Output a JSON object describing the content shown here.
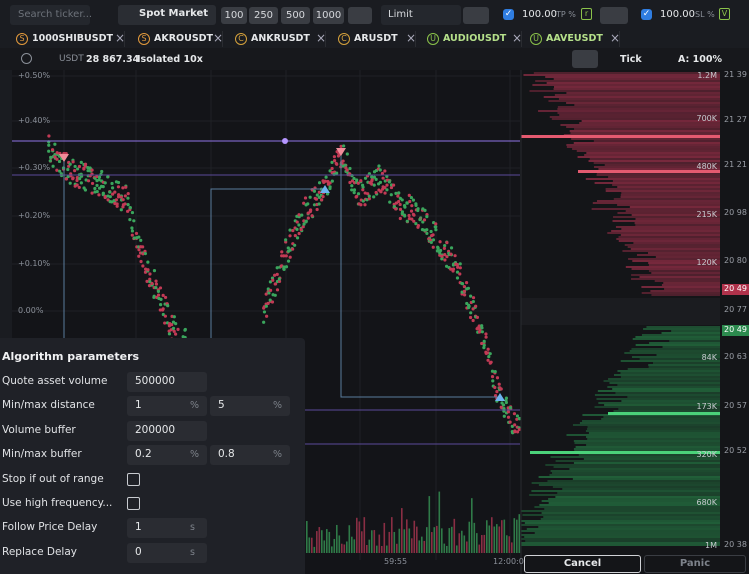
{
  "toolbar": {
    "search_placeholder": "Search ticker...",
    "market": "Spot Market",
    "amounts": [
      "100",
      "250",
      "500",
      "1000"
    ],
    "order_type": "Limit",
    "tp": {
      "value": "100.00",
      "label": "TP %",
      "key": "r"
    },
    "sl": {
      "value": "100.00",
      "label": "SL %",
      "key": "V"
    }
  },
  "tabs": [
    {
      "icon": "S",
      "name": "1000SHIBUSDT"
    },
    {
      "icon": "S",
      "name": "AKROUSDT"
    },
    {
      "icon": "C",
      "name": "ANKRUSDT"
    },
    {
      "icon": "C",
      "name": "ARUSDT"
    },
    {
      "icon": "U",
      "name": "AUDIOUSDT"
    },
    {
      "icon": "U",
      "name": "AAVEUSDT"
    }
  ],
  "account": {
    "currency": "USDT",
    "balance": "28 867.34",
    "margin": "Isolated 10x"
  },
  "chart_controls": {
    "interval": "Tick",
    "scale": "A: 100%"
  },
  "chart": {
    "y_labels": [
      "+0.50%",
      "+0.40%",
      "+0.30%",
      "+0.20%",
      "+0.10%",
      "0.00%"
    ],
    "time_labels": [
      "59:55",
      "12:00:0"
    ]
  },
  "orderbook": {
    "volume_labels": [
      "1.2M",
      "700K",
      "480K",
      "215K",
      "120K",
      "84K",
      "173K",
      "320K",
      "680K",
      "1M"
    ],
    "price_labels": [
      "21 39",
      "21 27",
      "21 21",
      "20 98",
      "20 80",
      "20 49",
      "20 77",
      "20 49",
      "20 63",
      "20 57",
      "20 52",
      "20 38"
    ]
  },
  "algorithm_panel": {
    "title": "Algorithm parameters",
    "rows": [
      {
        "label": "Quote asset volume",
        "inputs": [
          {
            "value": "500000"
          }
        ]
      },
      {
        "label": "Min/max distance",
        "inputs": [
          {
            "value": "1",
            "unit": "%"
          },
          {
            "value": "5",
            "unit": "%"
          }
        ]
      },
      {
        "label": "Volume buffer",
        "inputs": [
          {
            "value": "200000"
          }
        ]
      },
      {
        "label": "Min/max buffer",
        "inputs": [
          {
            "value": "0.2",
            "unit": "%"
          },
          {
            "value": "0.8",
            "unit": "%"
          }
        ]
      },
      {
        "label": "Stop if out of range",
        "checked": false
      },
      {
        "label": "Use high frequency...",
        "checked": false
      },
      {
        "label": "Follow Price Delay",
        "inputs": [
          {
            "value": "1",
            "unit": "s"
          }
        ]
      },
      {
        "label": "Replace Delay",
        "inputs": [
          {
            "value": "0",
            "unit": "s"
          }
        ]
      }
    ]
  },
  "buttons": {
    "cancel": "Cancel",
    "panic": "Panic"
  }
}
